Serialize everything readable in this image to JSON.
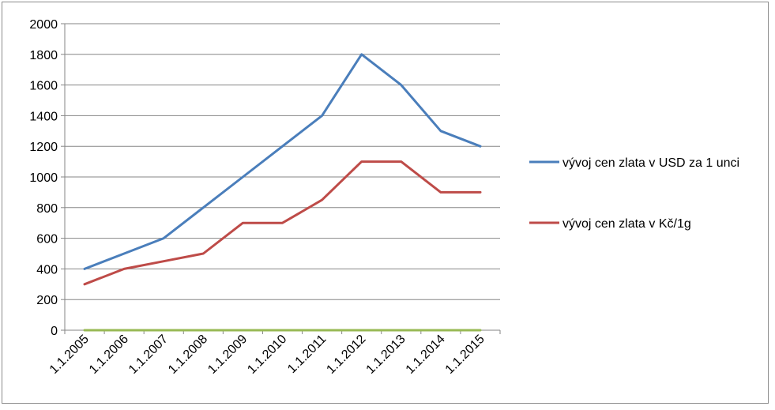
{
  "chart_data": {
    "type": "line",
    "categories": [
      "1.1.2005",
      "1.1.2006",
      "1.1.2007",
      "1.1.2008",
      "1.1.2009",
      "1.1.2010",
      "1.1.2011",
      "1.1.2012",
      "1.1.2013",
      "1.1.2014",
      "1.1.2015"
    ],
    "ylim": [
      0,
      2000
    ],
    "yticks": [
      "0",
      "200",
      "400",
      "600",
      "800",
      "1000",
      "1200",
      "1400",
      "1600",
      "1800",
      "2000"
    ],
    "grid": true,
    "legend_position": "right",
    "series": [
      {
        "name": "vývoj cen zlata v USD za 1 unci",
        "color": "#4a7ebb",
        "values": [
          400,
          500,
          600,
          800,
          1000,
          1200,
          1400,
          1800,
          1600,
          1300,
          1200
        ]
      },
      {
        "name": "vývoj cen zlata v Kč/1g",
        "color": "#be4b48",
        "values": [
          300,
          400,
          450,
          500,
          700,
          700,
          850,
          1100,
          1100,
          900,
          900
        ]
      },
      {
        "color": "#98b954",
        "values": [
          0,
          0,
          0,
          0,
          0,
          0,
          0,
          0,
          0,
          0,
          0
        ]
      }
    ]
  }
}
